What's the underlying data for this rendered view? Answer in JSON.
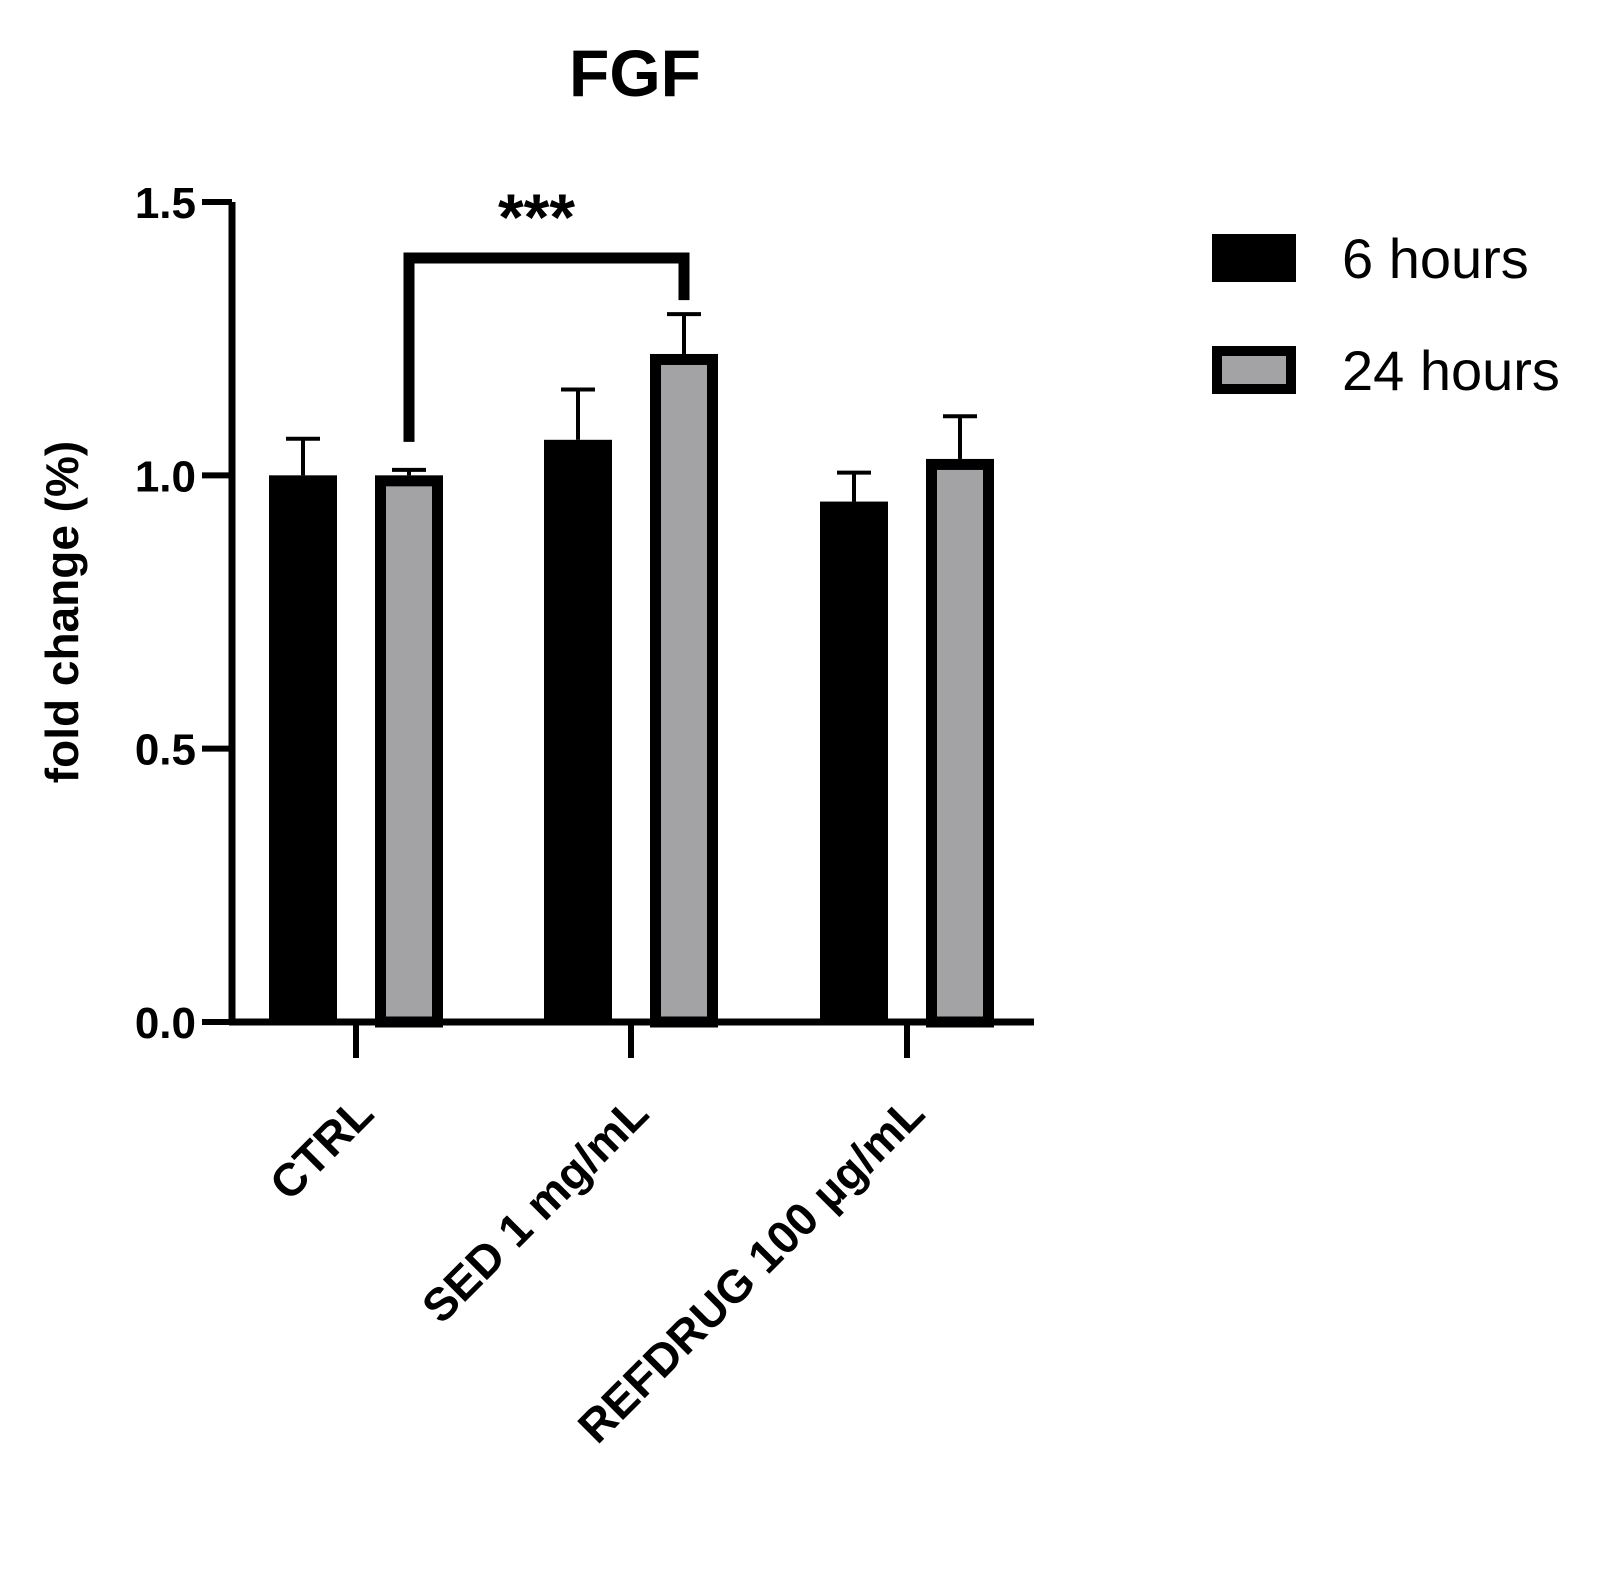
{
  "chart_data": {
    "type": "bar",
    "title": "FGF",
    "xlabel": "",
    "ylabel": "fold change (%)",
    "ylim": [
      0,
      1.5
    ],
    "yticks": [
      0.0,
      0.5,
      1.0,
      1.5
    ],
    "ytick_labels": [
      "0.0",
      "0.5",
      "1.0",
      "1.5"
    ],
    "categories": [
      "CTRL",
      "SED 1 mg/mL",
      "REFDRUG 100 µg/mL"
    ],
    "series": [
      {
        "name": "6 hours",
        "values": [
          1.0,
          1.065,
          0.952
        ],
        "errors": [
          0.067,
          0.092,
          0.053
        ],
        "color": "#000000"
      },
      {
        "name": "24 hours",
        "values": [
          1.0,
          1.222,
          1.03
        ],
        "errors": [
          0.01,
          0.073,
          0.078
        ],
        "color": "#a3a3a5"
      }
    ],
    "significance": [
      {
        "label": "***",
        "from_category": 0,
        "from_series": 1,
        "to_category": 1,
        "to_series": 1
      }
    ],
    "legend_position": "top-right",
    "grid": false
  }
}
